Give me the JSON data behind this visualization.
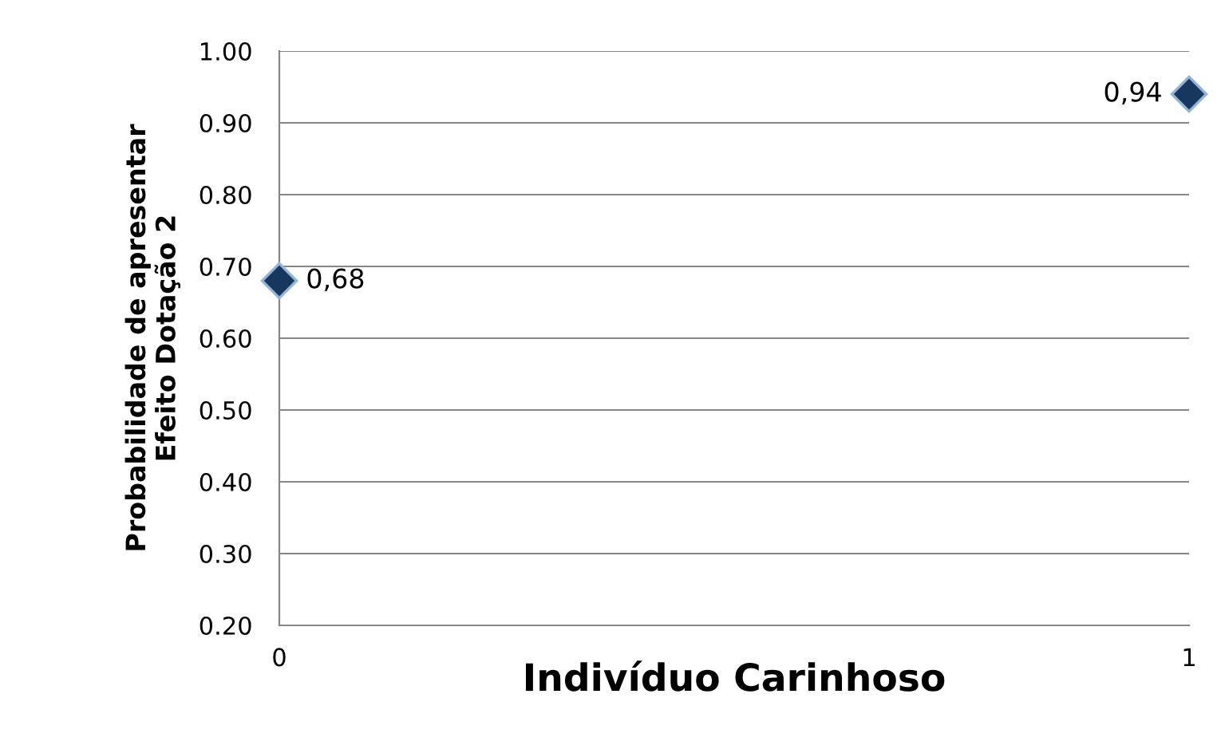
{
  "chart_data": {
    "type": "scatter",
    "x": [
      0,
      1
    ],
    "values": [
      0.68,
      0.94
    ],
    "value_labels": [
      "0,68",
      "0,94"
    ],
    "color": "#17375e",
    "marker": "diamond",
    "xlim": [
      0,
      1
    ],
    "xticks": [
      0,
      1
    ],
    "ylim": [
      0.2,
      1.0
    ],
    "yticks": [
      {
        "value": 0.2,
        "label": "0.20"
      },
      {
        "value": 0.3,
        "label": "0.30"
      },
      {
        "value": 0.4,
        "label": "0.40"
      },
      {
        "value": 0.5,
        "label": "0.50"
      },
      {
        "value": 0.6,
        "label": "0.60"
      },
      {
        "value": 0.7,
        "label": "0.70"
      },
      {
        "value": 0.8,
        "label": "0.80"
      },
      {
        "value": 0.9,
        "label": "0.90"
      },
      {
        "value": 1.0,
        "label": "1.00"
      }
    ],
    "xlabel": "Indivíduo Carinhoso",
    "ylabel": "Probabilidade de apresentar\nEfeito Dotação 2",
    "grid": "y"
  }
}
